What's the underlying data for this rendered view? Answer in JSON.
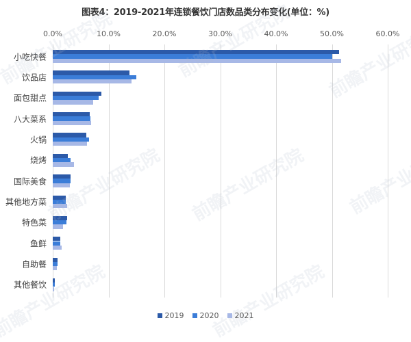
{
  "chart_data": {
    "type": "bar",
    "orientation": "horizontal",
    "title": "图表4：2019-2021年连锁餐饮门店数品类分布变化(单位：%)",
    "xlabel": "",
    "ylabel": "",
    "xlim": [
      0,
      60
    ],
    "x_ticks": [
      "0.0%",
      "10.0%",
      "20.0%",
      "30.0%",
      "40.0%",
      "50.0%",
      "60.0%"
    ],
    "x_tick_values": [
      0,
      10,
      20,
      30,
      40,
      50,
      60
    ],
    "grid": true,
    "legend_position": "bottom",
    "categories": [
      "小吃快餐",
      "饮品店",
      "面包甜点",
      "八大菜系",
      "火锅",
      "烧烤",
      "国际美食",
      "其他地方菜",
      "特色菜",
      "鱼鲜",
      "自助餐",
      "其他餐饮"
    ],
    "series": [
      {
        "name": "2019",
        "color": "#2C5AA8",
        "values": [
          51.3,
          13.8,
          8.7,
          6.6,
          6.0,
          2.7,
          3.2,
          2.3,
          2.6,
          1.4,
          0.9,
          0.4
        ]
      },
      {
        "name": "2020",
        "color": "#3B7DD8",
        "values": [
          50.0,
          15.0,
          8.2,
          6.7,
          6.5,
          3.2,
          3.2,
          2.3,
          2.4,
          1.3,
          0.8,
          0.4
        ]
      },
      {
        "name": "2021",
        "color": "#A7B8E6",
        "values": [
          51.7,
          14.1,
          7.2,
          6.9,
          6.1,
          3.8,
          3.1,
          2.6,
          1.9,
          1.6,
          0.7,
          0.3
        ]
      }
    ]
  },
  "watermark": "前瞻产业研究院"
}
